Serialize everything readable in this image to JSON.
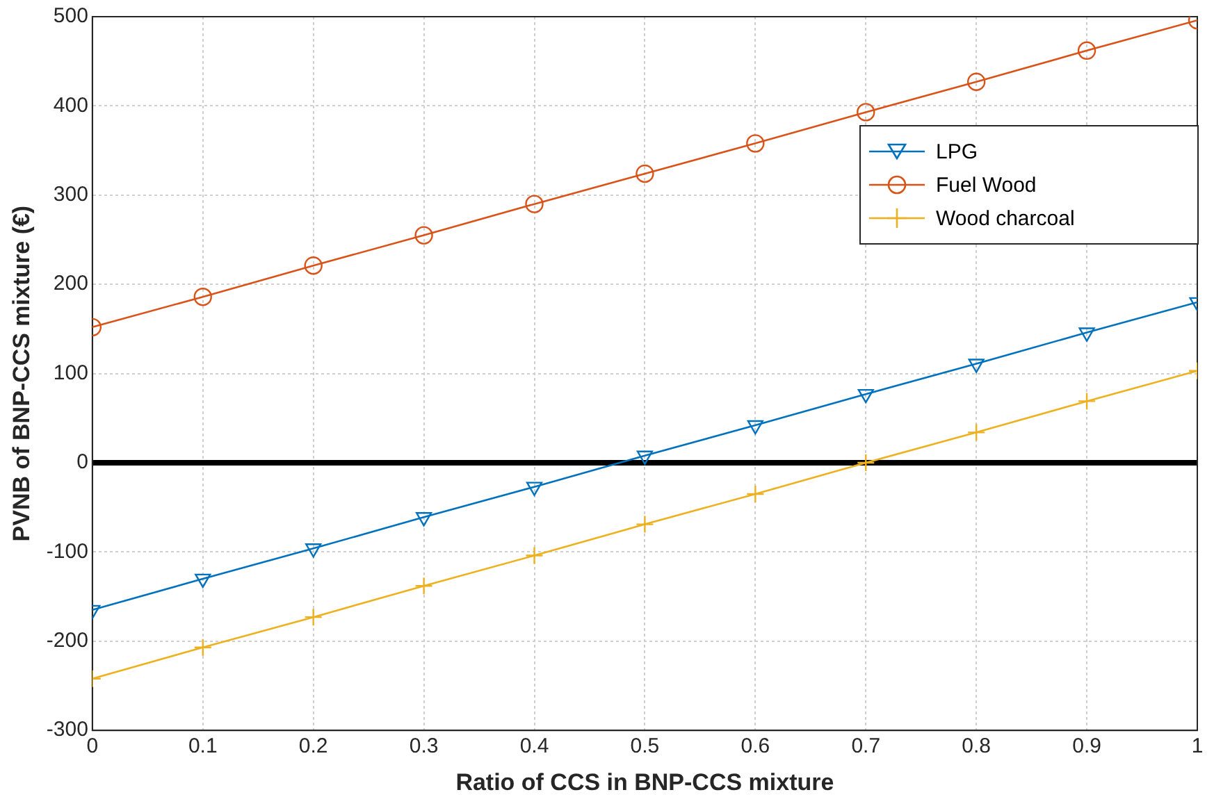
{
  "chart_data": {
    "type": "line",
    "xlabel": "Ratio of CCS in BNP-CCS mixture",
    "ylabel": "PVNB of BNP-CCS mixture (€)",
    "x": [
      0,
      0.1,
      0.2,
      0.3,
      0.4,
      0.5,
      0.6,
      0.7,
      0.8,
      0.9,
      1
    ],
    "series": [
      {
        "name": "LPG",
        "color": "#0072bd",
        "marker": "triangle",
        "values": [
          -165,
          -130,
          -96,
          -61,
          -27,
          8,
          42,
          77,
          111,
          146,
          180
        ]
      },
      {
        "name": "Fuel Wood",
        "color": "#d95319",
        "marker": "circle",
        "values": [
          152,
          186,
          221,
          255,
          290,
          324,
          358,
          393,
          427,
          462,
          496
        ]
      },
      {
        "name": "Wood charcoal",
        "color": "#edb120",
        "marker": "cross",
        "values": [
          -242,
          -207,
          -173,
          -138,
          -104,
          -69,
          -35,
          0,
          34,
          69,
          103
        ]
      }
    ],
    "xlim": [
      0,
      1
    ],
    "xticks": [
      0,
      0.1,
      0.2,
      0.3,
      0.4,
      0.5,
      0.6,
      0.7,
      0.8,
      0.9,
      1
    ],
    "ylim": [
      -300,
      500
    ],
    "yticks": [
      -300,
      -200,
      -100,
      0,
      100,
      200,
      300,
      400,
      500
    ],
    "ref_lines": [
      {
        "axis": "y",
        "value": 0,
        "color": "#000000"
      }
    ],
    "grid": true,
    "legend": "top right",
    "line_style": "solid"
  }
}
